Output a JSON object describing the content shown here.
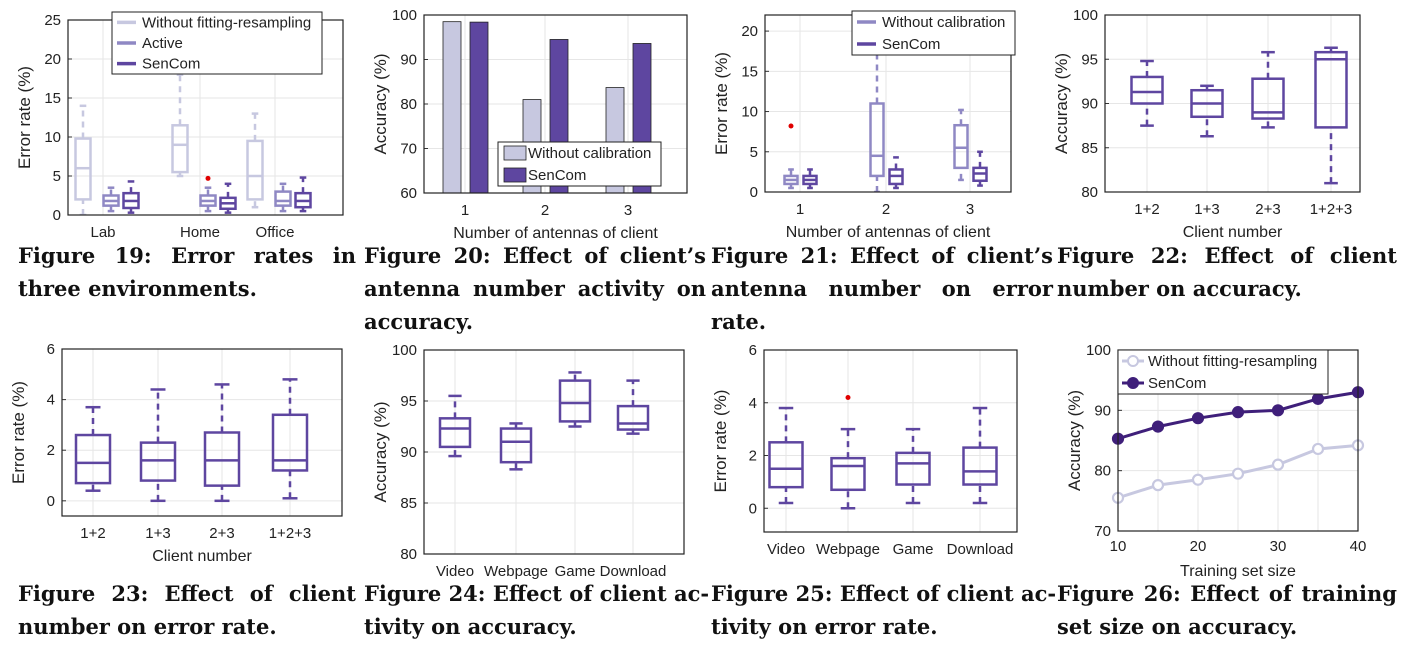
{
  "colors": {
    "light": "#c7c8e0",
    "medium": "#8f88c4",
    "dark": "#5e46a0",
    "darkest": "#3f1f7a",
    "outlier": "#e00000",
    "grid": "#e6e6e6"
  },
  "chart_data": [
    {
      "id": "fig19",
      "type": "boxplot",
      "ylabel": "Error rate (%)",
      "ylim": [
        0,
        25
      ],
      "yticks": [
        0,
        5,
        10,
        15,
        20,
        25
      ],
      "categories": [
        "Lab",
        "Home",
        "Office"
      ],
      "legend": [
        "Without fitting-resampling",
        "Active",
        "SenCom"
      ],
      "series": [
        {
          "name": "Without fitting-resampling",
          "color": "light",
          "boxes": [
            [
              0,
              2,
              6,
              9.8,
              14
            ],
            [
              5,
              5.5,
              9,
              11.5,
              18
            ],
            [
              1,
              2,
              5,
              9.5,
              13
            ]
          ]
        },
        {
          "name": "Active",
          "color": "medium",
          "boxes": [
            [
              0.5,
              1.2,
              1.8,
              2.5,
              3.5
            ],
            [
              0.5,
              1.2,
              1.8,
              2.5,
              3.5
            ],
            [
              0.5,
              1.2,
              1.8,
              3,
              4
            ]
          ]
        },
        {
          "name": "SenCom",
          "color": "dark",
          "boxes": [
            [
              0.3,
              0.9,
              1.8,
              2.8,
              4.3
            ],
            [
              0.3,
              0.8,
              1.5,
              2.2,
              4
            ],
            [
              0.5,
              1,
              1.8,
              2.8,
              4.8
            ]
          ]
        }
      ],
      "outliers": [
        {
          "category": 1,
          "series": 1,
          "value": 4.7
        }
      ]
    },
    {
      "id": "fig20",
      "type": "bar",
      "xlabel": "Number of antennas of client",
      "ylabel": "Accuracy (%)",
      "ylim": [
        60,
        100
      ],
      "yticks": [
        60,
        70,
        80,
        90,
        100
      ],
      "categories": [
        "1",
        "2",
        "3"
      ],
      "legend": [
        "Without calibration",
        "SenCom"
      ],
      "series": [
        {
          "name": "Without calibration",
          "color": "light",
          "values": [
            98.5,
            81,
            83.7
          ]
        },
        {
          "name": "SenCom",
          "color": "dark",
          "values": [
            98.4,
            94.5,
            93.6
          ]
        }
      ]
    },
    {
      "id": "fig21",
      "type": "boxplot",
      "xlabel": "Number of antennas of client",
      "ylabel": "Error rate (%)",
      "ylim": [
        0,
        22
      ],
      "yticks": [
        0,
        5,
        10,
        15,
        20
      ],
      "categories": [
        "1",
        "2",
        "3"
      ],
      "legend": [
        "Without calibration",
        "SenCom"
      ],
      "series": [
        {
          "name": "Without calibration",
          "color": "medium",
          "boxes": [
            [
              0.5,
              1,
              1.5,
              2,
              2.8
            ],
            [
              0,
              2,
              4.5,
              11,
              18
            ],
            [
              1.5,
              3,
              5.5,
              8.3,
              10.2
            ]
          ]
        },
        {
          "name": "SenCom",
          "color": "dark",
          "boxes": [
            [
              0.5,
              1,
              1.5,
              2,
              2.8
            ],
            [
              0.5,
              1,
              2,
              2.8,
              4.3
            ],
            [
              0.8,
              1.4,
              2.3,
              3,
              5
            ]
          ]
        }
      ],
      "outliers": [
        {
          "category": 0,
          "series": 0,
          "value": 8.2
        }
      ]
    },
    {
      "id": "fig22",
      "type": "boxplot",
      "xlabel": "Client number",
      "ylabel": "Accuracy (%)",
      "ylim": [
        80,
        100
      ],
      "yticks": [
        80,
        85,
        90,
        95,
        100
      ],
      "categories": [
        "1+2",
        "1+3",
        "2+3",
        "1+2+3"
      ],
      "series": [
        {
          "name": "SenCom",
          "color": "dark",
          "boxes": [
            [
              87.5,
              90,
              91.3,
              93,
              94.8
            ],
            [
              86.3,
              88.5,
              90,
              91.5,
              92
            ],
            [
              87.3,
              88.3,
              89,
              92.8,
              95.8
            ],
            [
              81,
              87.3,
              95,
              95.8,
              96.3
            ]
          ]
        }
      ]
    },
    {
      "id": "fig23",
      "type": "boxplot",
      "xlabel": "Client number",
      "ylabel": "Error rate (%)",
      "ylim": [
        -0.6,
        6
      ],
      "yticks": [
        0,
        2,
        4,
        6
      ],
      "categories": [
        "1+2",
        "1+3",
        "2+3",
        "1+2+3"
      ],
      "series": [
        {
          "name": "SenCom",
          "color": "dark",
          "boxes": [
            [
              0.4,
              0.7,
              1.5,
              2.6,
              3.7
            ],
            [
              0,
              0.8,
              1.6,
              2.3,
              4.4
            ],
            [
              0,
              0.6,
              1.6,
              2.7,
              4.6
            ],
            [
              0.1,
              1.2,
              1.6,
              3.4,
              4.8
            ]
          ]
        }
      ]
    },
    {
      "id": "fig24",
      "type": "boxplot",
      "ylabel": "Accuracy (%)",
      "ylim": [
        80,
        100
      ],
      "yticks": [
        80,
        85,
        90,
        95,
        100
      ],
      "categories": [
        "Video",
        "Webpage",
        "Game",
        "Download"
      ],
      "series": [
        {
          "name": "SenCom",
          "color": "dark",
          "boxes": [
            [
              89.6,
              90.5,
              92.3,
              93.3,
              95.5
            ],
            [
              88.3,
              89,
              91,
              92.3,
              92.8
            ],
            [
              92.5,
              93,
              94.8,
              97,
              97.8
            ],
            [
              91.8,
              92.2,
              92.8,
              94.5,
              97
            ]
          ]
        }
      ]
    },
    {
      "id": "fig25",
      "type": "boxplot",
      "ylabel": "Error rate (%)",
      "ylim": [
        -0.9,
        6
      ],
      "yticks": [
        0,
        2,
        4,
        6
      ],
      "categories": [
        "Video",
        "Webpage",
        "Game",
        "Download"
      ],
      "series": [
        {
          "name": "SenCom",
          "color": "dark",
          "boxes": [
            [
              0.2,
              0.8,
              1.5,
              2.5,
              3.8
            ],
            [
              0,
              0.7,
              1.6,
              1.9,
              3
            ],
            [
              0.2,
              0.9,
              1.7,
              2.1,
              3
            ],
            [
              0.2,
              0.9,
              1.4,
              2.3,
              3.8
            ]
          ]
        }
      ],
      "outliers": [
        {
          "category": 1,
          "series": 0,
          "value": 4.2
        }
      ]
    },
    {
      "id": "fig26",
      "type": "line",
      "xlabel": "Training set size",
      "ylabel": "Accuracy (%)",
      "xlim": [
        10,
        40
      ],
      "ylim": [
        70,
        100
      ],
      "xticks": [
        10,
        20,
        30,
        40
      ],
      "yticks": [
        70,
        80,
        90,
        100
      ],
      "legend": [
        "Without fitting-resampling",
        "SenCom"
      ],
      "x": [
        10,
        15,
        20,
        25,
        30,
        35,
        40
      ],
      "series": [
        {
          "name": "Without fitting-resampling",
          "color": "light",
          "values": [
            75.5,
            77.6,
            78.5,
            79.5,
            81,
            83.6,
            84.2
          ]
        },
        {
          "name": "SenCom",
          "color": "darkest",
          "values": [
            85.3,
            87.3,
            88.7,
            89.7,
            90,
            91.9,
            93
          ]
        }
      ]
    }
  ],
  "captions": [
    [
      "Figure 19: Error rates in",
      "three environments."
    ],
    [
      "Figure 20: Effect of client’s",
      "antenna number activity on",
      "accuracy."
    ],
    [
      "Figure 21: Effect of client’s",
      "antenna number on error",
      "rate."
    ],
    [
      "Figure 22: Effect of client",
      "number on accuracy."
    ],
    [
      "Figure 23: Effect of client",
      "number on error rate."
    ],
    [
      "Figure 24: Effect of client ac-",
      "tivity on accuracy."
    ],
    [
      "Figure 25: Effect of client ac-",
      "tivity on error rate."
    ],
    [
      "Figure 26: Effect of training",
      "set size on accuracy."
    ]
  ]
}
